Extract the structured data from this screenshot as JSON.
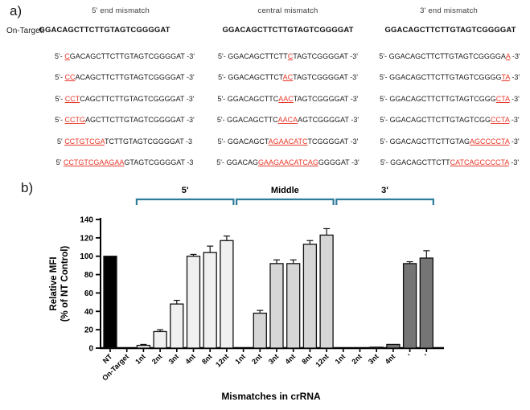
{
  "colors": {
    "red": "#e8392b",
    "bracket": "#2e7b9c",
    "bar_outline": "#111111"
  },
  "panel_a": {
    "label": "a)",
    "on_target_label": "On-Target:",
    "columns": [
      {
        "header": "5' end mismatch",
        "on_target": "GGACAGCTTCTTGTAGTCGGGGAT",
        "rows": [
          {
            "pre": "5'- ",
            "left": "",
            "red": "C",
            "right": "GACAGCTTCTTGTAGTCGGGGAT",
            "post": " -3'"
          },
          {
            "pre": "5'- ",
            "left": "",
            "red": "CC",
            "right": "ACAGCTTCTTGTAGTCGGGGAT",
            "post": " -3'"
          },
          {
            "pre": "5'- ",
            "left": "",
            "red": "CCT",
            "right": "CAGCTTCTTGTAGTCGGGGAT",
            "post": " -3'"
          },
          {
            "pre": "5'- ",
            "left": "",
            "red": "CCTG",
            "right": "AGCTTCTTGTAGTCGGGGAT",
            "post": " -3'"
          },
          {
            "pre": "5' ",
            "left": "",
            "red": "CCTGTCGA",
            "right": "TCTTGTAGTCGGGGAT",
            "post": " -3"
          },
          {
            "pre": "5' ",
            "left": "",
            "red": "CCTGTCGAAGAA",
            "right": "GTAGTCGGGGAT",
            "post": " -3"
          }
        ]
      },
      {
        "header": "central mismatch",
        "on_target": "GGACAGCTTCTTGTAGTCGGGGAT",
        "rows": [
          {
            "pre": "5'- ",
            "left": "GGACAGCTTCTT",
            "red": "C",
            "right": "TAGTCGGGGAT",
            "post": " -3'"
          },
          {
            "pre": "5'- ",
            "left": "GGACAGCTTCT",
            "red": "AC",
            "right": "TAGTCGGGGAT",
            "post": " -3'"
          },
          {
            "pre": "5'- ",
            "left": "GGACAGCTTC",
            "red": "AAC",
            "right": "TAGTCGGGGAT",
            "post": " -3'"
          },
          {
            "pre": "5'- ",
            "left": "GGACAGCTTC",
            "red": "AACA",
            "right": "AGTCGGGGAT",
            "post": " -3'"
          },
          {
            "pre": "5'- ",
            "left": "GGACAGCT",
            "red": "AGAACATC",
            "right": "TCGGGGAT",
            "post": " -3'"
          },
          {
            "pre": "5'- ",
            "left": "GGACAG",
            "red": "GAAGAACATCAG",
            "right": "GGGGAT",
            "post": " -3'"
          }
        ]
      },
      {
        "header": "3' end mismatch",
        "on_target": "GGACAGCTTCTTGTAGTCGGGGAT",
        "rows": [
          {
            "pre": "5'- ",
            "left": "GGACAGCTTCTTGTAGTCGGGGA",
            "red": "A",
            "right": "",
            "post": " -3'"
          },
          {
            "pre": "5'- ",
            "left": "GGACAGCTTCTTGTAGTCGGGG",
            "red": "TA",
            "right": "",
            "post": " -3'"
          },
          {
            "pre": "5'- ",
            "left": "GGACAGCTTCTTGTAGTCGGG",
            "red": "CTA",
            "right": "",
            "post": " -3'"
          },
          {
            "pre": "5'- ",
            "left": "GGACAGCTTCTTGTAGTCGG",
            "red": "CCTA",
            "right": "",
            "post": " -3'"
          },
          {
            "pre": "5'- ",
            "left": "GGACAGCTTCTTGTAG",
            "red": "AGCCCCTA",
            "right": "",
            "post": " -3'"
          },
          {
            "pre": "5'- ",
            "left": "GGACAGCTTCTT",
            "red": "CATCAGCCCCTA",
            "right": "",
            "post": " -3'"
          }
        ]
      }
    ]
  },
  "panel_b": {
    "label": "b)"
  },
  "chart_data": {
    "type": "bar",
    "title": "",
    "xlabel": "Mismatches in crRNA",
    "ylabel_line1": "Relative MFI",
    "ylabel_line2": "(% of NT Control)",
    "ylim": [
      0,
      140
    ],
    "yticks": [
      0,
      20,
      40,
      60,
      80,
      100,
      120,
      140
    ],
    "grid": false,
    "legend": "none",
    "categories": [
      "NT",
      "On-Target",
      "1nt",
      "2nt",
      "3nt",
      "4nt",
      "8nt",
      "12nt",
      "1nt",
      "2nt",
      "3nt",
      "4nt",
      "8nt",
      "12nt",
      "1nt",
      "2nt",
      "3nt",
      "4nt",
      "'",
      "'"
    ],
    "values": [
      100,
      0,
      3,
      18,
      48,
      100,
      104,
      117,
      0,
      38,
      92,
      92,
      113,
      123,
      0,
      0,
      1,
      4,
      92,
      98
    ],
    "errors": [
      0,
      0,
      1,
      2,
      4,
      2,
      7,
      5,
      0,
      3,
      4,
      4,
      4,
      7,
      0,
      0,
      0,
      0,
      2,
      8
    ],
    "bar_colors": [
      "#000000",
      "#f0f0f0",
      "#f0f0f0",
      "#f0f0f0",
      "#f0f0f0",
      "#f0f0f0",
      "#f0f0f0",
      "#f0f0f0",
      "#d6d6d6",
      "#d6d6d6",
      "#d6d6d6",
      "#d6d6d6",
      "#d6d6d6",
      "#d6d6d6",
      "#757575",
      "#757575",
      "#757575",
      "#757575",
      "#757575",
      "#757575"
    ],
    "groups": [
      {
        "label": "5'",
        "from": 2,
        "to": 7
      },
      {
        "label": "Middle",
        "from": 8,
        "to": 13
      },
      {
        "label": "3'",
        "from": 14,
        "to": 19
      }
    ]
  }
}
